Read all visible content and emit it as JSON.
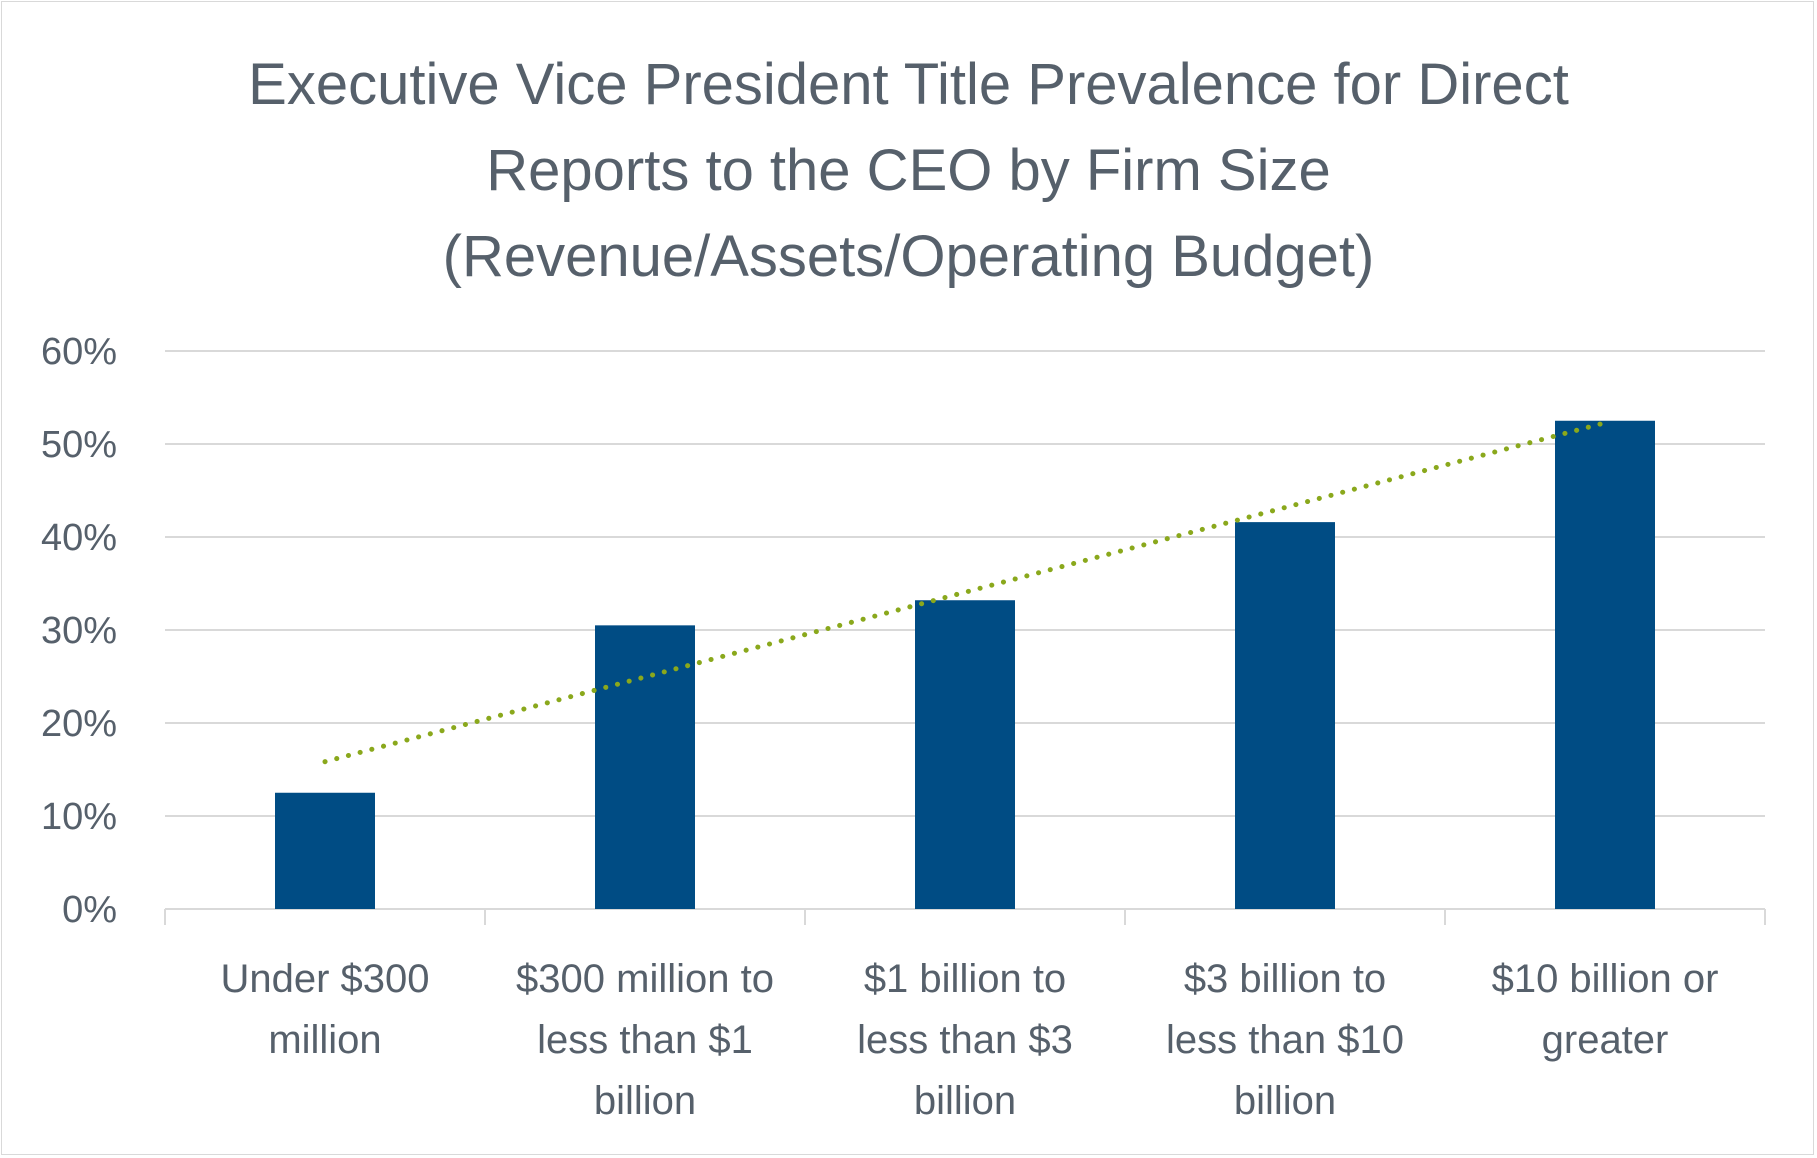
{
  "chart_data": {
    "type": "bar",
    "title_lines": [
      "Executive Vice President Title Prevalence for Direct",
      "Reports to the CEO by Firm Size",
      "(Revenue/Assets/Operating Budget)"
    ],
    "categories": [
      [
        "Under $300",
        "million"
      ],
      [
        "$300 million to",
        "less than $1",
        "billion"
      ],
      [
        "$1 billion to",
        "less than $3",
        "billion"
      ],
      [
        "$3 billion to",
        "less than $10",
        "billion"
      ],
      [
        "$10 billion or",
        "greater"
      ]
    ],
    "values": [
      12.5,
      30.5,
      33.2,
      41.6,
      52.5
    ],
    "ylim": [
      0,
      60
    ],
    "yticks": [
      0,
      10,
      20,
      30,
      40,
      50,
      60
    ],
    "ytick_suffix": "%",
    "xlabel": "",
    "ylabel": "",
    "grid": true,
    "trendline": {
      "type": "linear",
      "style": "dotted"
    },
    "colors": {
      "bar": "#004c84",
      "trend": "#8aa81c",
      "grid": "#d9d9d9",
      "text": "#56606b"
    }
  }
}
